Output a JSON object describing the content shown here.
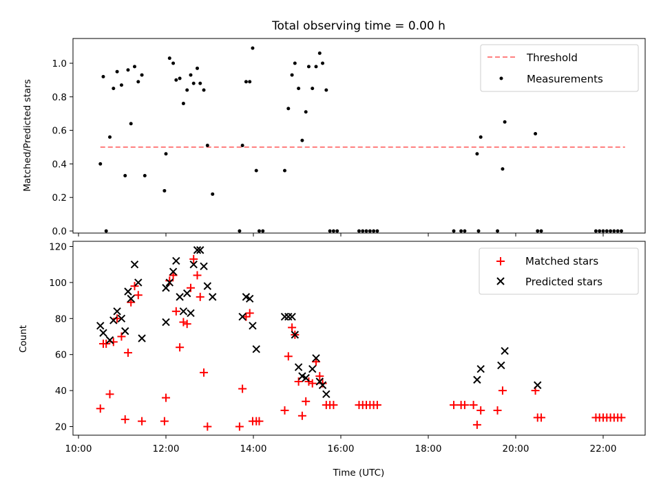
{
  "chart_data": [
    {
      "type": "scatter",
      "title": "Total observing time = 0.00 h",
      "ylabel": "Matched/Predicted stars",
      "xlabel": "",
      "xlim": [
        "10:00",
        "23:00"
      ],
      "ylim": [
        0,
        1.15
      ],
      "y_ticks": [
        "0.0",
        "0.2",
        "0.4",
        "0.6",
        "0.8",
        "1.0"
      ],
      "legend": {
        "placement": "top-right",
        "entries": [
          "Threshold",
          "Measurements"
        ]
      },
      "threshold": {
        "name": "Threshold",
        "y": 0.5,
        "x_range": [
          "10:30",
          "22:30"
        ],
        "color": "#ff7f7f",
        "style": "dashed"
      },
      "series": [
        {
          "name": "Measurements",
          "color": "#000000",
          "points": [
            [
              "10:30",
              0.4
            ],
            [
              "10:34",
              0.92
            ],
            [
              "10:38",
              0.0
            ],
            [
              "10:43",
              0.56
            ],
            [
              "10:48",
              0.85
            ],
            [
              "10:53",
              0.95
            ],
            [
              "10:59",
              0.87
            ],
            [
              "11:04",
              0.33
            ],
            [
              "11:08",
              0.96
            ],
            [
              "11:12",
              0.64
            ],
            [
              "11:17",
              0.98
            ],
            [
              "11:22",
              0.89
            ],
            [
              "11:27",
              0.93
            ],
            [
              "11:31",
              0.33
            ],
            [
              "11:58",
              0.24
            ],
            [
              "12:00",
              0.46
            ],
            [
              "12:05",
              1.03
            ],
            [
              "12:10",
              1.0
            ],
            [
              "12:14",
              0.9
            ],
            [
              "12:19",
              0.91
            ],
            [
              "12:24",
              0.76
            ],
            [
              "12:29",
              0.84
            ],
            [
              "12:34",
              0.93
            ],
            [
              "12:38",
              0.88
            ],
            [
              "12:43",
              0.97
            ],
            [
              "12:47",
              0.88
            ],
            [
              "12:52",
              0.84
            ],
            [
              "12:57",
              0.51
            ],
            [
              "13:04",
              0.22
            ],
            [
              "13:41",
              0.0
            ],
            [
              "13:45",
              0.51
            ],
            [
              "13:50",
              0.89
            ],
            [
              "13:55",
              0.89
            ],
            [
              "13:59",
              1.09
            ],
            [
              "14:04",
              0.36
            ],
            [
              "14:08",
              0.0
            ],
            [
              "14:13",
              0.0
            ],
            [
              "14:43",
              0.36
            ],
            [
              "14:48",
              0.73
            ],
            [
              "14:53",
              0.93
            ],
            [
              "14:57",
              1.0
            ],
            [
              "15:02",
              0.85
            ],
            [
              "15:07",
              0.54
            ],
            [
              "15:12",
              0.71
            ],
            [
              "15:16",
              0.98
            ],
            [
              "15:21",
              0.85
            ],
            [
              "15:26",
              0.98
            ],
            [
              "15:31",
              1.06
            ],
            [
              "15:35",
              1.0
            ],
            [
              "15:40",
              0.84
            ],
            [
              "15:45",
              0.0
            ],
            [
              "15:50",
              0.0
            ],
            [
              "15:55",
              0.0
            ],
            [
              "16:25",
              0.0
            ],
            [
              "16:30",
              0.0
            ],
            [
              "16:35",
              0.0
            ],
            [
              "16:40",
              0.0
            ],
            [
              "16:45",
              0.0
            ],
            [
              "16:50",
              0.0
            ],
            [
              "18:35",
              0.0
            ],
            [
              "18:45",
              0.0
            ],
            [
              "18:50",
              0.0
            ],
            [
              "19:07",
              0.46
            ],
            [
              "19:12",
              0.56
            ],
            [
              "19:09",
              0.0
            ],
            [
              "19:35",
              0.0
            ],
            [
              "19:42",
              0.37
            ],
            [
              "19:45",
              0.65
            ],
            [
              "20:27",
              0.58
            ],
            [
              "20:30",
              0.0
            ],
            [
              "20:35",
              0.0
            ],
            [
              "21:50",
              0.0
            ],
            [
              "21:55",
              0.0
            ],
            [
              "22:00",
              0.0
            ],
            [
              "22:05",
              0.0
            ],
            [
              "22:10",
              0.0
            ],
            [
              "22:15",
              0.0
            ],
            [
              "22:20",
              0.0
            ],
            [
              "22:25",
              0.0
            ]
          ]
        }
      ]
    },
    {
      "type": "scatter",
      "title": "",
      "ylabel": "Count",
      "xlabel": "Time (UTC)",
      "xlim": [
        "10:00",
        "23:00"
      ],
      "ylim": [
        15,
        122
      ],
      "x_ticks": [
        "10:00",
        "12:00",
        "14:00",
        "16:00",
        "18:00",
        "20:00",
        "22:00"
      ],
      "y_ticks": [
        "20",
        "40",
        "60",
        "80",
        "100",
        "120"
      ],
      "legend": {
        "placement": "top-right",
        "entries": [
          "Matched stars",
          "Predicted stars"
        ]
      },
      "series": [
        {
          "name": "Matched stars",
          "marker": "plus",
          "color": "#ff0000",
          "points": [
            [
              "10:30",
              30
            ],
            [
              "10:34",
              66
            ],
            [
              "10:38",
              66
            ],
            [
              "10:43",
              38
            ],
            [
              "10:48",
              67
            ],
            [
              "10:53",
              80
            ],
            [
              "10:59",
              70
            ],
            [
              "11:04",
              24
            ],
            [
              "11:08",
              61
            ],
            [
              "11:12",
              89
            ],
            [
              "11:17",
              98
            ],
            [
              "11:22",
              93
            ],
            [
              "11:27",
              23
            ],
            [
              "11:58",
              23
            ],
            [
              "12:00",
              36
            ],
            [
              "12:05",
              101
            ],
            [
              "12:10",
              104
            ],
            [
              "12:14",
              84
            ],
            [
              "12:19",
              64
            ],
            [
              "12:24",
              78
            ],
            [
              "12:29",
              77
            ],
            [
              "12:34",
              97
            ],
            [
              "12:38",
              113
            ],
            [
              "12:43",
              104
            ],
            [
              "12:47",
              92
            ],
            [
              "12:52",
              50
            ],
            [
              "12:57",
              20
            ],
            [
              "13:41",
              20
            ],
            [
              "13:45",
              41
            ],
            [
              "13:50",
              81
            ],
            [
              "13:55",
              83
            ],
            [
              "13:59",
              23
            ],
            [
              "14:04",
              23
            ],
            [
              "14:08",
              23
            ],
            [
              "14:43",
              29
            ],
            [
              "14:48",
              59
            ],
            [
              "14:53",
              75
            ],
            [
              "14:57",
              71
            ],
            [
              "15:02",
              45
            ],
            [
              "15:07",
              26
            ],
            [
              "15:12",
              34
            ],
            [
              "15:16",
              45
            ],
            [
              "15:21",
              44
            ],
            [
              "15:26",
              56
            ],
            [
              "15:31",
              48
            ],
            [
              "15:35",
              44
            ],
            [
              "15:40",
              32
            ],
            [
              "15:45",
              32
            ],
            [
              "15:50",
              32
            ],
            [
              "16:25",
              32
            ],
            [
              "16:30",
              32
            ],
            [
              "16:35",
              32
            ],
            [
              "16:40",
              32
            ],
            [
              "16:45",
              32
            ],
            [
              "16:50",
              32
            ],
            [
              "18:35",
              32
            ],
            [
              "18:45",
              32
            ],
            [
              "18:50",
              32
            ],
            [
              "19:02",
              32
            ],
            [
              "19:07",
              21
            ],
            [
              "19:12",
              29
            ],
            [
              "19:35",
              29
            ],
            [
              "19:42",
              40
            ],
            [
              "20:27",
              40
            ],
            [
              "20:30",
              25
            ],
            [
              "20:35",
              25
            ],
            [
              "21:50",
              25
            ],
            [
              "21:55",
              25
            ],
            [
              "22:00",
              25
            ],
            [
              "22:05",
              25
            ],
            [
              "22:10",
              25
            ],
            [
              "22:15",
              25
            ],
            [
              "22:20",
              25
            ],
            [
              "22:25",
              25
            ]
          ]
        },
        {
          "name": "Predicted stars",
          "marker": "x",
          "color": "#000000",
          "points": [
            [
              "10:30",
              76
            ],
            [
              "10:34",
              72
            ],
            [
              "10:43",
              68
            ],
            [
              "10:48",
              79
            ],
            [
              "10:53",
              84
            ],
            [
              "10:59",
              80
            ],
            [
              "11:04",
              73
            ],
            [
              "11:08",
              95
            ],
            [
              "11:12",
              91
            ],
            [
              "11:17",
              110
            ],
            [
              "11:22",
              100
            ],
            [
              "11:27",
              69
            ],
            [
              "12:00",
              97
            ],
            [
              "12:00",
              78
            ],
            [
              "12:05",
              100
            ],
            [
              "12:10",
              106
            ],
            [
              "12:14",
              112
            ],
            [
              "12:19",
              92
            ],
            [
              "12:24",
              84
            ],
            [
              "12:29",
              94
            ],
            [
              "12:34",
              83
            ],
            [
              "12:38",
              110
            ],
            [
              "12:43",
              118
            ],
            [
              "12:47",
              118
            ],
            [
              "12:52",
              109
            ],
            [
              "12:57",
              98
            ],
            [
              "13:04",
              92
            ],
            [
              "13:45",
              81
            ],
            [
              "13:50",
              92
            ],
            [
              "13:55",
              91
            ],
            [
              "13:59",
              76
            ],
            [
              "14:04",
              63
            ],
            [
              "14:43",
              81
            ],
            [
              "14:48",
              81
            ],
            [
              "14:53",
              81
            ],
            [
              "14:57",
              71
            ],
            [
              "15:02",
              53
            ],
            [
              "15:07",
              48
            ],
            [
              "15:12",
              47
            ],
            [
              "15:21",
              52
            ],
            [
              "15:26",
              58
            ],
            [
              "15:31",
              45
            ],
            [
              "15:35",
              43
            ],
            [
              "15:40",
              38
            ],
            [
              "19:07",
              46
            ],
            [
              "19:12",
              52
            ],
            [
              "19:40",
              54
            ],
            [
              "19:45",
              62
            ],
            [
              "20:30",
              43
            ]
          ]
        }
      ]
    }
  ]
}
